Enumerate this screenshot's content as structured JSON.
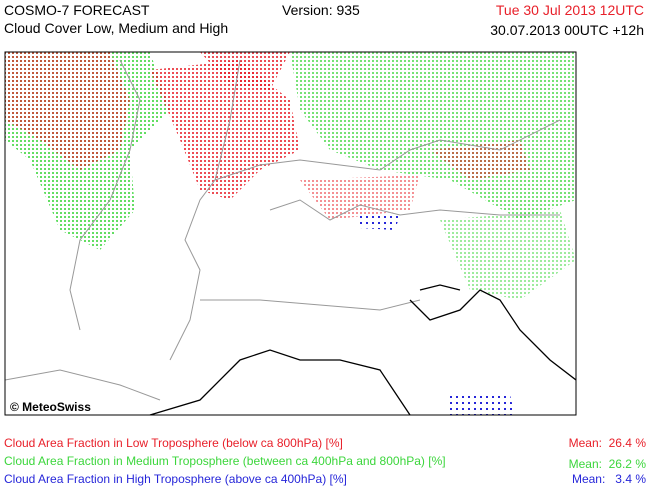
{
  "header": {
    "product": "COSMO-7 FORECAST",
    "subtitle": "Cloud Cover Low, Medium and High",
    "version": "Version: 935",
    "valid_time": "Tue 30 Jul 2013 12UTC",
    "run_time": "30.07.2013 00UTC +12h"
  },
  "map": {
    "copyright": "© MeteoSwiss"
  },
  "legend": [
    {
      "label": "Cloud Area Fraction in Low Troposphere (below ca 800hPa) [%]",
      "mean": "Mean:  26.4 %",
      "color": "#e8202a"
    },
    {
      "label": "Cloud Area Fraction in Medium Troposphere (between ca 400hPa and 800hPa) [%]",
      "mean": "Mean:  26.2 %",
      "color": "#3cd63c"
    },
    {
      "label": "Cloud Area Fraction in High Troposphere (above ca 400hPa) [%]",
      "mean": "Mean:   3.4 %",
      "color": "#2626d9"
    }
  ]
}
